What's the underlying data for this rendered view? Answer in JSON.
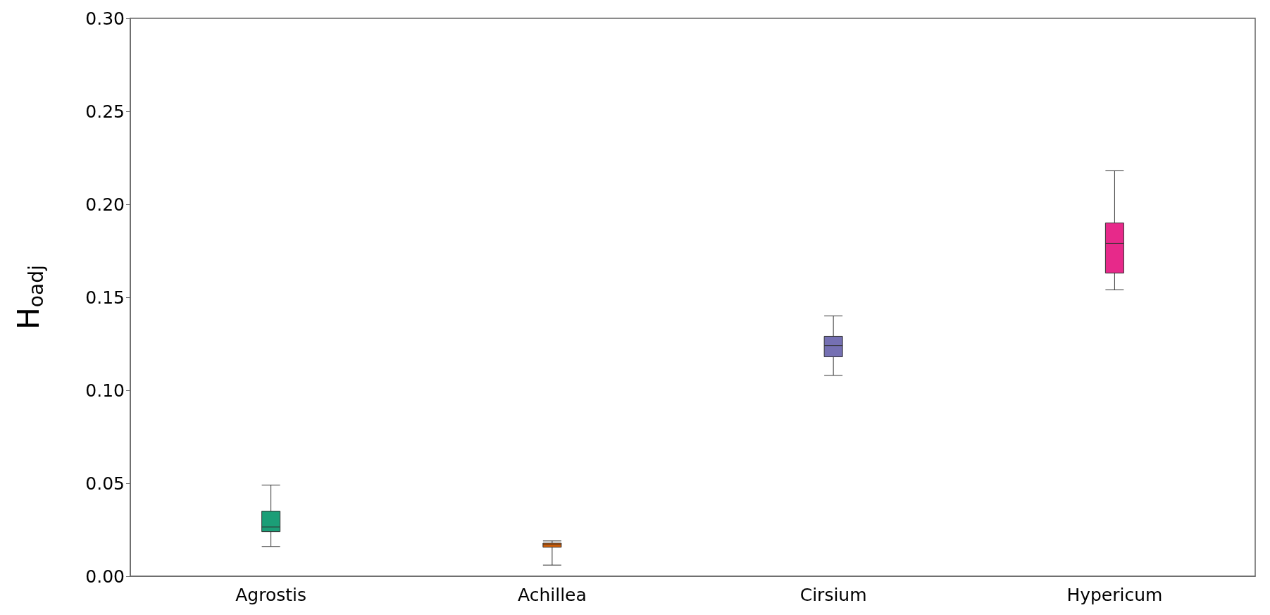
{
  "chart_data": {
    "type": "box",
    "ylabel": "H$_{oadj}$",
    "categories": [
      "Agrostis",
      "Achillea",
      "Cirsium",
      "Hypericum"
    ],
    "boxes": [
      {
        "low": 0.016,
        "q1": 0.024,
        "median": 0.0265,
        "q3": 0.035,
        "high": 0.049
      },
      {
        "low": 0.006,
        "q1": 0.0156,
        "median": 0.017,
        "q3": 0.0178,
        "high": 0.019
      },
      {
        "low": 0.108,
        "q1": 0.118,
        "median": 0.124,
        "q3": 0.129,
        "high": 0.14
      },
      {
        "low": 0.154,
        "q1": 0.163,
        "median": 0.179,
        "q3": 0.19,
        "high": 0.218
      }
    ],
    "colors": [
      "#1b9e77",
      "#d95f02",
      "#7570b3",
      "#e7298a"
    ],
    "ylim": [
      0,
      0.3
    ],
    "yticks": [
      {
        "value": 0,
        "label": "0.00"
      },
      {
        "value": 0.05,
        "label": "0.05"
      },
      {
        "value": 0.1,
        "label": "0.10"
      },
      {
        "value": 0.15,
        "label": "0.15"
      },
      {
        "value": 0.2,
        "label": "0.20"
      },
      {
        "value": 0.25,
        "label": "0.25"
      },
      {
        "value": 0.3,
        "label": "0.30"
      }
    ],
    "grid": false
  }
}
